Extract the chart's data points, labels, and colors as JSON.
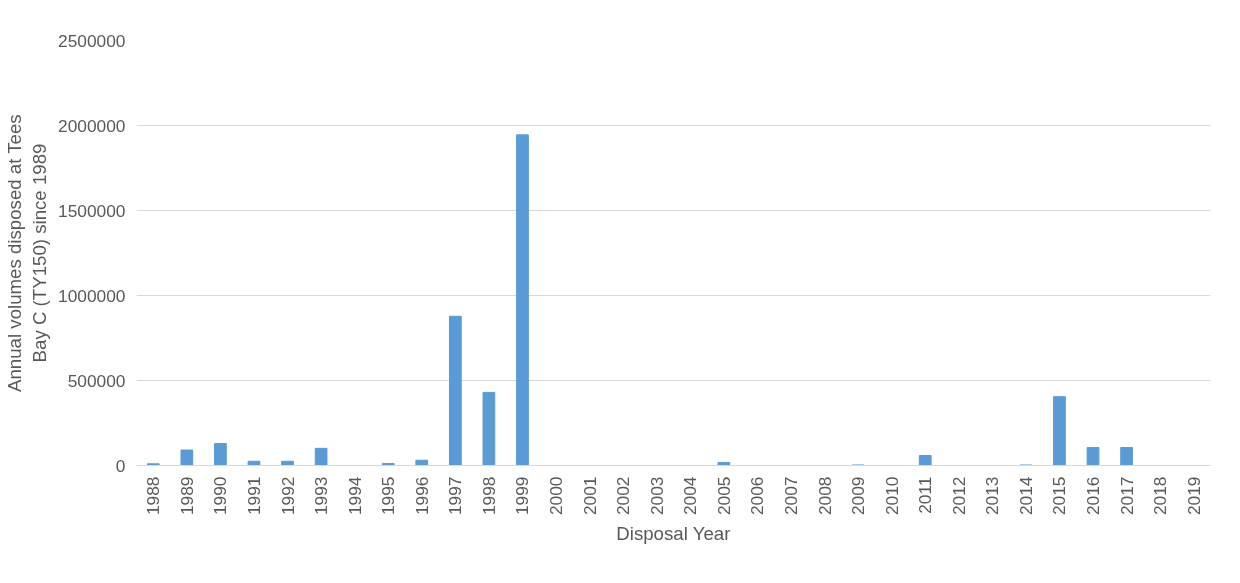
{
  "chart_data": {
    "type": "bar",
    "xlabel": "Disposal Year",
    "ylabel": "Annual volumes disposed at Tees Bay C (TY150) since 1989",
    "categories": [
      "1988",
      "1989",
      "1990",
      "1991",
      "1992",
      "1993",
      "1994",
      "1995",
      "1996",
      "1997",
      "1998",
      "1999",
      "2000",
      "2001",
      "2002",
      "2003",
      "2004",
      "2005",
      "2006",
      "2007",
      "2008",
      "2009",
      "2010",
      "2011",
      "2012",
      "2013",
      "2014",
      "2015",
      "2016",
      "2017",
      "2018",
      "2019"
    ],
    "values": [
      10000,
      91000,
      129000,
      25000,
      25000,
      101000,
      0,
      12000,
      31000,
      878000,
      430000,
      1945000,
      0,
      0,
      0,
      0,
      0,
      18000,
      0,
      0,
      0,
      3000,
      0,
      59000,
      0,
      0,
      3000,
      405000,
      106000,
      106000,
      0,
      0
    ],
    "color": "#5b9bd5",
    "ylim": [
      0,
      2500000
    ],
    "yticks": [
      0,
      500000,
      1000000,
      1500000,
      2000000,
      2500000
    ],
    "grid": "y"
  }
}
